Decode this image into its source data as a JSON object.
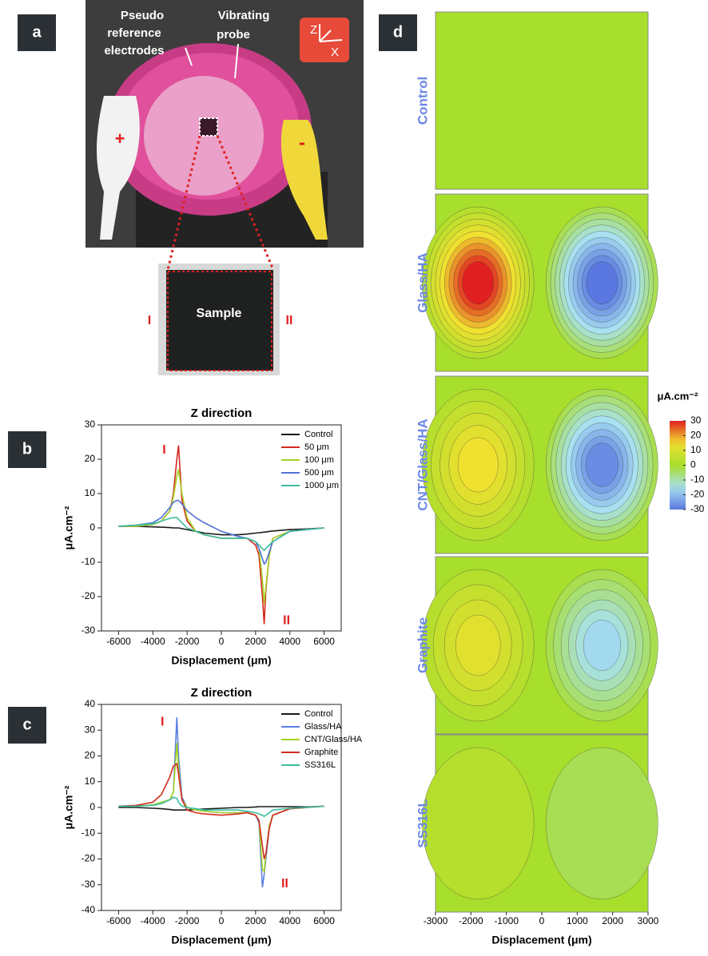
{
  "panels": [
    "a",
    "b",
    "c",
    "d"
  ],
  "photo": {
    "probe_labels": [
      [
        "Pseudo",
        "reference",
        "electrodes"
      ],
      [
        "Vibrating",
        "probe"
      ]
    ],
    "axes": [
      "Z",
      "X"
    ],
    "poles": [
      "+",
      "-"
    ],
    "sample": "Sample",
    "edges": [
      "I",
      "II"
    ]
  },
  "chart_data": [
    {
      "type": "line",
      "title": "Z direction",
      "xlabel": "Displacement (μm)",
      "ylabel": "μA.cm⁻²",
      "x": [
        -6000,
        -5000,
        -4000,
        -3500,
        -3000,
        -2800,
        -2600,
        -2500,
        -2300,
        -2000,
        -1500,
        -1000,
        0,
        1000,
        1500,
        2000,
        2200,
        2400,
        2500,
        2600,
        2800,
        3000,
        4000,
        5000,
        6000
      ],
      "series": [
        {
          "name": "Control",
          "color": "#1a1a1a",
          "values": [
            0.5,
            0.5,
            0.3,
            0.2,
            0.1,
            0,
            0,
            0,
            -0.2,
            -0.5,
            -1,
            -1.5,
            -2,
            -2,
            -1.8,
            -1.5,
            -1.4,
            -1.3,
            -1.2,
            -1.2,
            -1,
            -0.9,
            -0.5,
            -0.3,
            0
          ]
        },
        {
          "name": "50 μm",
          "color": "#d42a1e",
          "values": [
            0.5,
            0.5,
            1,
            2,
            5,
            10,
            20,
            24,
            8,
            2,
            -1,
            -2,
            -3,
            -3,
            -3,
            -5,
            -8,
            -20,
            -28,
            -18,
            -8,
            -3,
            -1,
            -0.5,
            0
          ]
        },
        {
          "name": "100 μm",
          "color": "#a4d424",
          "values": [
            0.5,
            0.5,
            1,
            2,
            5,
            9,
            15,
            17,
            10,
            3,
            -1,
            -2,
            -3,
            -3,
            -3,
            -4,
            -6,
            -15,
            -22,
            -17,
            -8,
            -3,
            -1,
            -0.5,
            0
          ]
        },
        {
          "name": "500 μm",
          "color": "#4f6fd6",
          "values": [
            0.5,
            0.8,
            1.5,
            3,
            6,
            7.5,
            8,
            8,
            7,
            5,
            3,
            1.5,
            -1,
            -2.5,
            -3,
            -4,
            -6,
            -9,
            -10.5,
            -10,
            -7,
            -4,
            -1,
            -0.5,
            0
          ]
        },
        {
          "name": "1000 μm",
          "color": "#3cbca0",
          "values": [
            0.5,
            0.8,
            1.2,
            2,
            2.8,
            3,
            3,
            2.5,
            1.5,
            0,
            -1,
            -2,
            -3,
            -3,
            -3,
            -4,
            -5,
            -6,
            -6.5,
            -6,
            -5,
            -4,
            -1,
            -0.5,
            0
          ]
        }
      ],
      "annotations": [
        "I",
        "II"
      ],
      "xlim": [
        -7000,
        7000
      ],
      "xticks": [
        -6000,
        -4000,
        -2000,
        0,
        2000,
        4000,
        6000
      ],
      "ylim": [
        -30,
        30
      ],
      "yticks": [
        -30,
        -20,
        -10,
        0,
        10,
        20,
        30
      ]
    },
    {
      "type": "line",
      "title": "Z direction",
      "xlabel": "Displacement (μm)",
      "ylabel": "μA.cm⁻²",
      "x": [
        -6000,
        -5000,
        -4000,
        -3500,
        -3000,
        -2800,
        -2600,
        -2500,
        -2300,
        -2000,
        -1500,
        -1000,
        0,
        1000,
        1500,
        2000,
        2200,
        2400,
        2500,
        2600,
        2800,
        3000,
        4000,
        5000,
        6000
      ],
      "series": [
        {
          "name": "Control",
          "color": "#1a1a1a",
          "values": [
            0,
            0,
            -0.3,
            -0.5,
            -0.8,
            -1,
            -1,
            -1,
            -1,
            -1,
            -0.8,
            -0.6,
            -0.3,
            0,
            0,
            0.2,
            0.3,
            0.3,
            0.3,
            0.3,
            0.3,
            0.3,
            0.3,
            0.2,
            0.5
          ]
        },
        {
          "name": "Glass/HA",
          "color": "#5a7fe0",
          "values": [
            0.5,
            0.5,
            1,
            2,
            3,
            6,
            35,
            20,
            4,
            0,
            -1,
            -1.5,
            -2,
            -2,
            -2,
            -3,
            -6,
            -31,
            -26,
            -20,
            -8,
            -3,
            -0.5,
            0,
            0.5
          ]
        },
        {
          "name": "CNT/Glass/HA",
          "color": "#a4d424",
          "values": [
            0.5,
            0.5,
            1,
            2,
            3,
            6,
            25,
            15,
            3,
            0,
            -1,
            -1.5,
            -2,
            -2,
            -2,
            -3,
            -5,
            -24,
            -25,
            -18,
            -7,
            -3,
            -0.5,
            0,
            0.5
          ]
        },
        {
          "name": "Graphite",
          "color": "#d42a1e",
          "values": [
            0.5,
            0.8,
            2,
            5,
            12,
            16,
            17,
            13,
            3,
            -1,
            -2,
            -2.5,
            -3,
            -2.5,
            -2,
            -3,
            -5,
            -15,
            -20,
            -18,
            -8,
            -3,
            -0.5,
            0,
            0.5
          ]
        },
        {
          "name": "SS316L",
          "color": "#3cbca0",
          "values": [
            0.5,
            0.5,
            0.8,
            1.5,
            3,
            4,
            3.5,
            2,
            0.5,
            0,
            -0.5,
            -1,
            -1,
            -1,
            -1.5,
            -2,
            -2.5,
            -3,
            -3.5,
            -3,
            -2,
            -1,
            -0.3,
            0,
            0.5
          ]
        }
      ],
      "annotations": [
        "I",
        "II"
      ],
      "xlim": [
        -7000,
        7000
      ],
      "xticks": [
        -6000,
        -4000,
        -2000,
        0,
        2000,
        4000,
        6000
      ],
      "ylim": [
        -40,
        40
      ],
      "yticks": [
        -40,
        -30,
        -20,
        -10,
        0,
        10,
        20,
        30,
        40
      ]
    },
    {
      "type": "heatmap",
      "xlabel": "Displacement (μm)",
      "xlim": [
        -3000,
        3000
      ],
      "xticks": [
        -3000,
        -2000,
        -1000,
        0,
        1000,
        2000,
        3000
      ],
      "rows": [
        {
          "name": "Control",
          "max": 0,
          "min": 0
        },
        {
          "name": "Glass/HA",
          "max": 30,
          "min": -30
        },
        {
          "name": "CNT/Glass/HA",
          "max": 15,
          "min": -27
        },
        {
          "name": "Graphite",
          "max": 12,
          "min": -16
        },
        {
          "name": "SS316L",
          "max": 3,
          "min": -3
        }
      ],
      "colorbar_label": "μA.cm⁻²",
      "colorbar_lim": [
        -30,
        30
      ],
      "colorbar_ticks": [
        30,
        20,
        10,
        0,
        -10,
        -20,
        -30
      ]
    }
  ]
}
